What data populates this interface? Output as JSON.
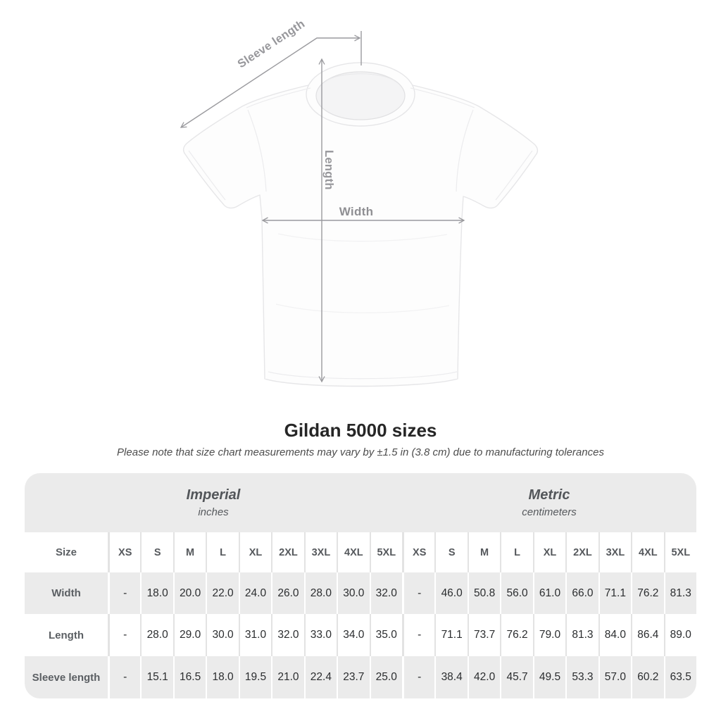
{
  "figure": {
    "sleeve_length_label": "Sleeve length",
    "length_label": "Length",
    "width_label": "Width"
  },
  "heading": {
    "title": "Gildan 5000 sizes",
    "note": "Please note that size chart measurements may vary by ±1.5 in (3.8 cm) due to manufacturing tolerances"
  },
  "table": {
    "unit_groups": [
      {
        "name": "Imperial",
        "subtitle": "inches"
      },
      {
        "name": "Metric",
        "subtitle": "centimeters"
      }
    ],
    "size_label": "Size",
    "sizes": [
      "XS",
      "S",
      "M",
      "L",
      "XL",
      "2XL",
      "3XL",
      "4XL",
      "5XL"
    ],
    "rows": [
      {
        "label": "Width",
        "imperial": [
          "-",
          "18.0",
          "20.0",
          "22.0",
          "24.0",
          "26.0",
          "28.0",
          "30.0",
          "32.0"
        ],
        "metric": [
          "-",
          "46.0",
          "50.8",
          "56.0",
          "61.0",
          "66.0",
          "71.1",
          "76.2",
          "81.3"
        ]
      },
      {
        "label": "Length",
        "imperial": [
          "-",
          "28.0",
          "29.0",
          "30.0",
          "31.0",
          "32.0",
          "33.0",
          "34.0",
          "35.0"
        ],
        "metric": [
          "-",
          "71.1",
          "73.7",
          "76.2",
          "79.0",
          "81.3",
          "84.0",
          "86.4",
          "89.0"
        ]
      },
      {
        "label": "Sleeve length",
        "imperial": [
          "-",
          "15.1",
          "16.5",
          "18.0",
          "19.5",
          "21.0",
          "22.4",
          "23.7",
          "25.0"
        ],
        "metric": [
          "-",
          "38.4",
          "42.0",
          "45.7",
          "49.5",
          "53.3",
          "57.0",
          "60.2",
          "63.5"
        ]
      }
    ]
  },
  "colors": {
    "table_band": "#ebebeb",
    "separator_on_white_rows": "#e3e3e3",
    "dimension_line": "#9a9a9e",
    "title_text": "#262626",
    "note_text": "#4c4c4c",
    "label_text": "#5b5f63",
    "value_text": "#2b2d2f"
  }
}
